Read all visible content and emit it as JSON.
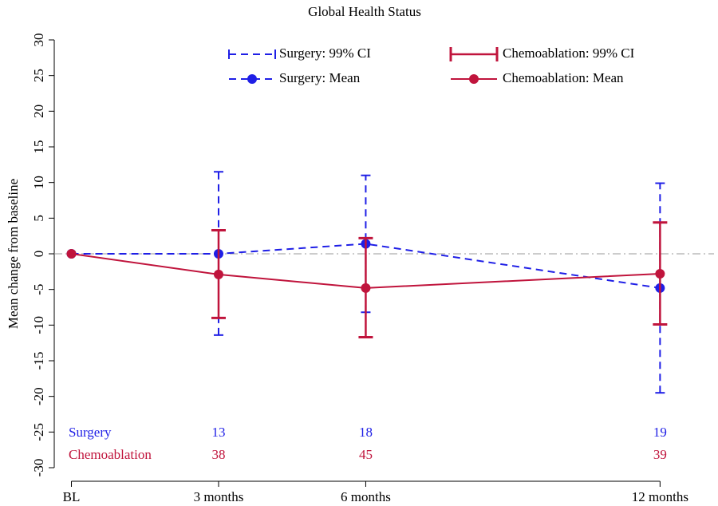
{
  "chart_data": {
    "type": "line",
    "title": "Global Health Status",
    "ylabel": "Mean change from baseline",
    "x": [
      0,
      3,
      6,
      12
    ],
    "xlim": [
      -0.35,
      13.1
    ],
    "xticks": [
      {
        "value": 0,
        "label": "BL"
      },
      {
        "value": 3,
        "label": "3 months"
      },
      {
        "value": 6,
        "label": "6 months"
      },
      {
        "value": 12,
        "label": "12 months"
      }
    ],
    "ylim": [
      -30,
      30
    ],
    "yticks": [
      -30,
      -25,
      -20,
      -15,
      -10,
      -5,
      0,
      5,
      10,
      15,
      20,
      25,
      30
    ],
    "reference_line": 0,
    "series": [
      {
        "name": "Surgery: Mean",
        "ci_name": "Surgery: 99% CI",
        "color": "#1f1fe6",
        "dashed": true,
        "values": [
          0,
          0,
          1.4,
          -4.8
        ],
        "lower": [
          null,
          -11.4,
          -8.2,
          -19.5
        ],
        "upper": [
          null,
          11.5,
          11,
          9.9
        ]
      },
      {
        "name": "Chemoablation: Mean",
        "ci_name": "Chemoablation: 99% CI",
        "color": "#c0143c",
        "dashed": false,
        "values": [
          0,
          -2.9,
          -4.8,
          -2.8
        ],
        "lower": [
          null,
          -9,
          -11.7,
          -9.9
        ],
        "upper": [
          null,
          3.3,
          2.2,
          4.4
        ]
      }
    ],
    "n_table": [
      {
        "label": "Surgery",
        "color": "#1f1fe6",
        "values": [
          null,
          13,
          18,
          19
        ]
      },
      {
        "label": "Chemoablation",
        "color": "#c0143c",
        "values": [
          null,
          38,
          45,
          39
        ]
      }
    ]
  }
}
